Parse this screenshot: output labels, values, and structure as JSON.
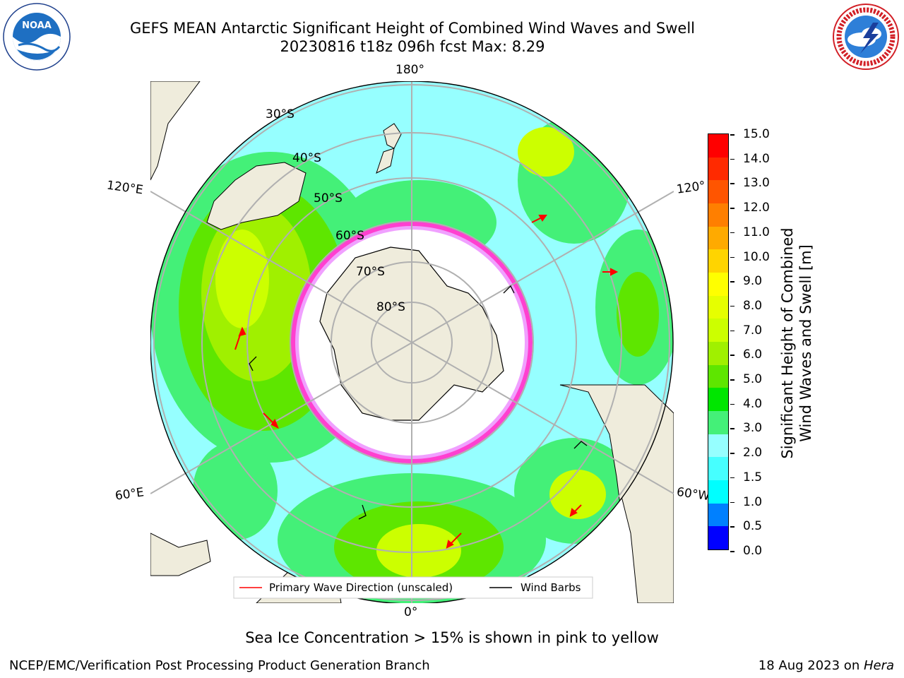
{
  "title": {
    "line1": "GEFS MEAN Antarctic Significant Height of Combined Wind Waves and Swell",
    "line2": "20230816 t18z 096h fcst   Max: 8.29"
  },
  "logos": {
    "left": {
      "text": "NOAA",
      "ring_text": "NATIONAL OCEANIC AND ATMOSPHERIC ADMINISTRATION · U.S. DEPARTMENT OF COMMERCE"
    },
    "right": {
      "ring_text": "NATIONAL WEATHER SERVICE"
    }
  },
  "map": {
    "longitude_labels": {
      "top": "180°",
      "bottom": "0°",
      "left_upper": "120°E",
      "left_lower": "60°E",
      "right_upper": "120°",
      "right_lower": "60°W"
    },
    "latitude_labels": [
      "30°S",
      "40°S",
      "50°S",
      "60°S",
      "70°S",
      "80°S"
    ],
    "legend": {
      "wave_label": "Primary Wave Direction (unscaled)",
      "barb_label": "Wind Barbs",
      "wave_color": "#ff0000",
      "barb_color": "#000000"
    }
  },
  "colorbar": {
    "label_line1": "Significant Height of Combined",
    "label_line2": "Wind Waves and Swell [m]",
    "ticks": [
      "15.0",
      "14.0",
      "13.0",
      "12.0",
      "11.0",
      "10.0",
      "9.0",
      "8.0",
      "7.0",
      "6.0",
      "5.0",
      "4.0",
      "3.0",
      "2.0",
      "1.5",
      "1.0",
      "0.5",
      "0.0"
    ],
    "colors": [
      "#ff0000",
      "#ff2a00",
      "#ff5500",
      "#ff7f00",
      "#ffaa00",
      "#ffd400",
      "#ffff00",
      "#e6ff00",
      "#ccff00",
      "#a0f000",
      "#5ee600",
      "#00e600",
      "#44f078",
      "#96ffff",
      "#46ffff",
      "#00ffff",
      "#0080ff",
      "#0000ff"
    ]
  },
  "caption": "Sea Ice Concentration > 15% is shown in pink to yellow",
  "footer": {
    "left": "NCEP/EMC/Verification Post Processing Product Generation Branch",
    "right_prefix": "18 Aug 2023 on ",
    "right_host": "Hera"
  }
}
